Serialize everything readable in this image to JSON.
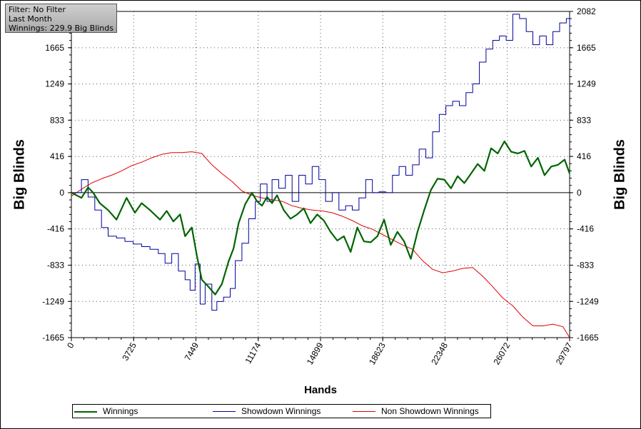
{
  "filter_box": {
    "filter": "Filter: No Filter",
    "period": "Last Month",
    "winnings": "Winnings: 229.9 Big Blinds"
  },
  "chart_data": {
    "type": "line",
    "xlabel": "Hands",
    "ylabel": "Big Blinds",
    "xlim": [
      0,
      29797
    ],
    "ylim": [
      -1665,
      2082
    ],
    "x_ticks": [
      "0",
      "3725",
      "7449",
      "11174",
      "14899",
      "18623",
      "22348",
      "26072",
      "29797"
    ],
    "y_ticks": [
      "2082",
      "1665",
      "1249",
      "833",
      "416",
      "0",
      "-416",
      "-833",
      "-1249",
      "-1665"
    ],
    "grid": true,
    "legend_position": "bottom",
    "series": [
      {
        "name": "Winnings",
        "color": "#006400",
        "x": [
          0,
          600,
          1000,
          1300,
          1700,
          2200,
          2700,
          3300,
          3800,
          4200,
          4700,
          5300,
          5700,
          6100,
          6500,
          6800,
          7200,
          7500,
          7800,
          8200,
          8600,
          9000,
          9400,
          9700,
          10000,
          10400,
          10800,
          11100,
          11400,
          11700,
          12000,
          12300,
          12700,
          13100,
          13500,
          13900,
          14300,
          14700,
          15100,
          15500,
          15900,
          16300,
          16700,
          17100,
          17500,
          17900,
          18300,
          18700,
          19100,
          19500,
          19900,
          20300,
          20700,
          21100,
          21500,
          21900,
          22300,
          22700,
          23100,
          23500,
          23900,
          24300,
          24700,
          25100,
          25500,
          25900,
          26300,
          26700,
          27100,
          27500,
          27900,
          28300,
          28700,
          29100,
          29500,
          29797
        ],
        "values": [
          0,
          -60,
          60,
          0,
          -120,
          -200,
          -310,
          -60,
          -230,
          -120,
          -200,
          -310,
          -210,
          -330,
          -250,
          -500,
          -400,
          -720,
          -1000,
          -1080,
          -1170,
          -1050,
          -790,
          -640,
          -350,
          -130,
          0,
          -100,
          -150,
          -50,
          -120,
          -30,
          -200,
          -300,
          -250,
          -180,
          -350,
          -250,
          -320,
          -450,
          -550,
          -500,
          -680,
          -400,
          -560,
          -570,
          -500,
          -310,
          -600,
          -450,
          -560,
          -760,
          -450,
          -200,
          30,
          160,
          150,
          50,
          190,
          110,
          220,
          330,
          250,
          510,
          450,
          590,
          470,
          450,
          480,
          300,
          400,
          200,
          300,
          320,
          380,
          220
        ]
      },
      {
        "name": "Showdown Winnings",
        "color": "#00009b",
        "x": [
          0,
          600,
          1000,
          1400,
          1800,
          2200,
          2700,
          3200,
          3700,
          4200,
          4700,
          5200,
          5600,
          6000,
          6400,
          6800,
          7100,
          7400,
          7700,
          8000,
          8400,
          8700,
          9100,
          9500,
          9800,
          10200,
          10600,
          11000,
          11300,
          11700,
          12000,
          12400,
          12800,
          13200,
          13600,
          14000,
          14400,
          14800,
          15200,
          15600,
          16000,
          16400,
          16800,
          17200,
          17600,
          18000,
          18400,
          18800,
          19200,
          19600,
          20000,
          20400,
          20800,
          21200,
          21600,
          22000,
          22400,
          22800,
          23200,
          23600,
          24000,
          24400,
          24800,
          25200,
          25600,
          26000,
          26400,
          26800,
          27200,
          27600,
          28000,
          28400,
          28800,
          29200,
          29600,
          29797
        ],
        "values": [
          0,
          150,
          -50,
          -200,
          -400,
          -500,
          -520,
          -560,
          -590,
          -620,
          -650,
          -700,
          -810,
          -700,
          -900,
          -1000,
          -1120,
          -820,
          -1280,
          -1050,
          -1350,
          -1250,
          -1200,
          -1100,
          -780,
          -580,
          -300,
          -100,
          100,
          -100,
          150,
          50,
          200,
          -100,
          200,
          100,
          300,
          150,
          -100,
          0,
          -200,
          -150,
          -200,
          -60,
          150,
          0,
          10,
          0,
          200,
          300,
          200,
          320,
          500,
          400,
          700,
          900,
          1000,
          1050,
          1000,
          1150,
          1250,
          1500,
          1650,
          1750,
          1800,
          1750,
          2050,
          2000,
          1850,
          1700,
          1800,
          1700,
          1850,
          1950,
          2000,
          1850
        ]
      },
      {
        "name": "Non Showdown Winnings",
        "color": "#e00000",
        "x": [
          0,
          600,
          1200,
          1800,
          2400,
          3000,
          3600,
          4200,
          4800,
          5400,
          6000,
          6600,
          7200,
          7800,
          8400,
          9000,
          9600,
          10200,
          10800,
          11400,
          12000,
          12600,
          13200,
          13800,
          14400,
          15000,
          15600,
          16200,
          16800,
          17400,
          18000,
          18600,
          19200,
          19800,
          20400,
          21000,
          21600,
          22200,
          22800,
          23400,
          24000,
          24600,
          25200,
          25800,
          26400,
          27000,
          27600,
          28200,
          28800,
          29400,
          29797
        ],
        "values": [
          -40,
          40,
          110,
          160,
          200,
          250,
          310,
          350,
          400,
          440,
          460,
          460,
          470,
          450,
          320,
          220,
          130,
          20,
          -30,
          -60,
          -80,
          -100,
          -150,
          -180,
          -200,
          -210,
          -230,
          -270,
          -320,
          -380,
          -420,
          -480,
          -540,
          -600,
          -650,
          -780,
          -880,
          -920,
          -900,
          -870,
          -860,
          -960,
          -1080,
          -1210,
          -1300,
          -1430,
          -1530,
          -1530,
          -1510,
          -1540,
          -1665
        ]
      }
    ]
  }
}
